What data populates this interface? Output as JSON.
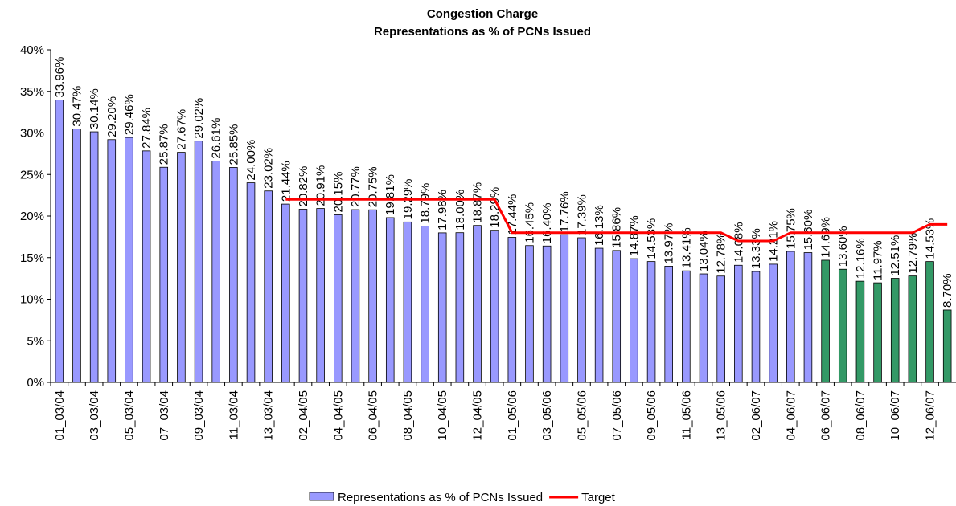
{
  "chart_data": {
    "type": "bar",
    "title": "Congestion Charge",
    "subtitle": "Representations as % of PCNs Issued",
    "categories": [
      "01_03/04",
      null,
      "03_03/04",
      null,
      "05_03/04",
      null,
      "07_03/04",
      null,
      "09_03/04",
      null,
      "11_03/04",
      null,
      "13_03/04",
      null,
      "02_04/05",
      null,
      "04_04/05",
      null,
      "06_04/05",
      null,
      "08_04/05",
      null,
      "10_04/05",
      null,
      "12_04/05",
      null,
      "01_05/06",
      null,
      "03_05/06",
      null,
      "05_05/06",
      null,
      "07_05/06",
      null,
      "09_05/06",
      null,
      "11_05/06",
      null,
      "13_05/06",
      null,
      "02_06/07",
      null,
      "04_06/07",
      null,
      "06_06/07",
      null,
      "08_06/07",
      null,
      "10_06/07",
      null,
      "12_06/07",
      null
    ],
    "series": [
      {
        "name": "Representations as % of PCNs Issued",
        "type": "bar",
        "color": "#9999ff",
        "values": [
          33.96,
          30.47,
          30.14,
          29.2,
          29.46,
          27.84,
          25.87,
          27.67,
          29.02,
          26.61,
          25.85,
          24.0,
          23.02,
          21.44,
          20.82,
          20.91,
          20.15,
          20.77,
          20.75,
          19.81,
          19.29,
          18.79,
          17.98,
          18.0,
          18.87,
          18.29,
          17.44,
          16.45,
          16.4,
          17.76,
          17.39,
          16.13,
          15.86,
          14.87,
          14.53,
          13.97,
          13.41,
          13.04,
          12.78,
          14.08,
          13.33,
          14.21,
          15.75,
          15.6,
          14.69,
          13.6,
          12.16,
          11.97,
          12.51,
          12.79,
          14.53,
          8.7
        ],
        "value_labels": [
          "33.96%",
          "30.47%",
          "30.14%",
          "29.20%",
          "29.46%",
          "27.84%",
          "25.87%",
          "27.67%",
          "29.02%",
          "26.61%",
          "25.85%",
          "24.00%",
          "23.02%",
          "21.44%",
          "20.82%",
          "20.91%",
          "20.15%",
          "20.77%",
          "20.75%",
          "19.81%",
          "19.29%",
          "18.79%",
          "17.98%",
          "18.00%",
          "18.87%",
          "18.29%",
          "17.44%",
          "16.45%",
          "16.40%",
          "17.76%",
          "17.39%",
          "16.13%",
          "15.86%",
          "14.87%",
          "14.53%",
          "13.97%",
          "13.41%",
          "13.04%",
          "12.78%",
          "14.08%",
          "13.33%",
          "14.21%",
          "15.75%",
          "15.60%",
          "14.69%",
          "13.60%",
          "12.16%",
          "11.97%",
          "12.51%",
          "12.79%",
          "14.53%",
          "8.70%"
        ],
        "bar_colors": [
          "#9999ff",
          "#9999ff",
          "#9999ff",
          "#9999ff",
          "#9999ff",
          "#9999ff",
          "#9999ff",
          "#9999ff",
          "#9999ff",
          "#9999ff",
          "#9999ff",
          "#9999ff",
          "#9999ff",
          "#9999ff",
          "#9999ff",
          "#9999ff",
          "#9999ff",
          "#9999ff",
          "#9999ff",
          "#9999ff",
          "#9999ff",
          "#9999ff",
          "#9999ff",
          "#9999ff",
          "#9999ff",
          "#9999ff",
          "#9999ff",
          "#9999ff",
          "#9999ff",
          "#9999ff",
          "#9999ff",
          "#9999ff",
          "#9999ff",
          "#9999ff",
          "#9999ff",
          "#9999ff",
          "#9999ff",
          "#9999ff",
          "#9999ff",
          "#9999ff",
          "#9999ff",
          "#9999ff",
          "#9999ff",
          "#9999ff",
          "#339966",
          "#339966",
          "#339966",
          "#339966",
          "#339966",
          "#339966",
          "#339966",
          "#339966"
        ]
      },
      {
        "name": "Target",
        "type": "line",
        "color": "#ff0000",
        "values": [
          null,
          null,
          null,
          null,
          null,
          null,
          null,
          null,
          null,
          null,
          null,
          null,
          null,
          22,
          22,
          22,
          22,
          22,
          22,
          22,
          22,
          22,
          22,
          22,
          22,
          22,
          18,
          18,
          18,
          18,
          18,
          18,
          18,
          18,
          18,
          18,
          18,
          18,
          18,
          17,
          17,
          17,
          18,
          18,
          18,
          18,
          18,
          18,
          18,
          18,
          19,
          19
        ]
      }
    ],
    "ylim": [
      0,
      40
    ],
    "yticks": [
      {
        "value": 0,
        "label": "0%"
      },
      {
        "value": 5,
        "label": "5%"
      },
      {
        "value": 10,
        "label": "10%"
      },
      {
        "value": 15,
        "label": "15%"
      },
      {
        "value": 20,
        "label": "20%"
      },
      {
        "value": 25,
        "label": "25%"
      },
      {
        "value": 30,
        "label": "30%"
      },
      {
        "value": 35,
        "label": "35%"
      },
      {
        "value": 40,
        "label": "40%"
      }
    ],
    "legend": "bottom"
  }
}
